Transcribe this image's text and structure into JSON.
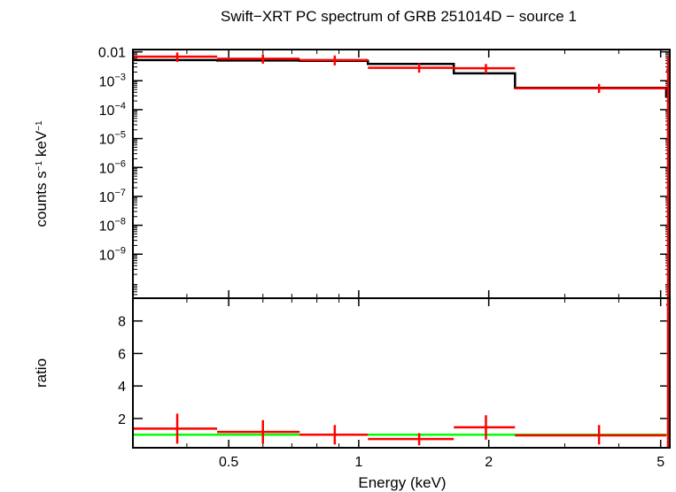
{
  "chart_data": {
    "type": "line",
    "title": "Swift−XRT PC spectrum of GRB 251014D − source 1",
    "xlabel": "Energy (keV)",
    "x_scale": "log",
    "xlim": [
      0.3,
      5.25
    ],
    "x_ticks": [
      {
        "value": 0.5,
        "label": "0.5"
      },
      {
        "value": 1,
        "label": "1"
      },
      {
        "value": 2,
        "label": "2"
      },
      {
        "value": 5,
        "label": "5"
      }
    ],
    "panels": [
      {
        "name": "spectrum",
        "ylabel": "counts s⁻¹ keV⁻¹",
        "y_scale": "log",
        "ylim": [
          3e-11,
          0.012
        ],
        "y_ticks": [
          {
            "value": 0.01,
            "label": "0.01"
          },
          {
            "value": 0.001,
            "label": "10⁻³"
          },
          {
            "value": 0.0001,
            "label": "10⁻⁴"
          },
          {
            "value": 1e-05,
            "label": "10⁻⁵"
          },
          {
            "value": 1e-06,
            "label": "10⁻⁶"
          },
          {
            "value": 1e-07,
            "label": "10⁻⁷"
          },
          {
            "value": 1e-08,
            "label": "10⁻⁸"
          },
          {
            "value": 1e-09,
            "label": "10⁻⁹"
          }
        ],
        "data": {
          "color": "#ff0000",
          "points": [
            {
              "x": 0.38,
              "xlo": 0.3,
              "xhi": 0.47,
              "y": 0.0068,
              "ylo": 0.0045,
              "yhi": 0.0095
            },
            {
              "x": 0.6,
              "xlo": 0.47,
              "xhi": 0.73,
              "y": 0.0058,
              "ylo": 0.0039,
              "yhi": 0.0082
            },
            {
              "x": 0.88,
              "xlo": 0.73,
              "xhi": 1.05,
              "y": 0.0052,
              "ylo": 0.0034,
              "yhi": 0.0075
            },
            {
              "x": 1.38,
              "xlo": 1.05,
              "xhi": 1.66,
              "y": 0.0028,
              "ylo": 0.0019,
              "yhi": 0.004
            },
            {
              "x": 1.97,
              "xlo": 1.66,
              "xhi": 2.3,
              "y": 0.0027,
              "ylo": 0.0018,
              "yhi": 0.0038
            },
            {
              "x": 3.6,
              "xlo": 2.3,
              "xhi": 5.15,
              "y": 0.00055,
              "ylo": 0.00038,
              "yhi": 0.00078
            },
            {
              "x": 5.2,
              "xlo": 5.15,
              "xhi": 5.25,
              "y": 0.0023,
              "ylo": 3e-11,
              "yhi": 0.0075
            }
          ]
        },
        "model": {
          "color": "#000000",
          "steps": [
            {
              "xlo": 0.3,
              "xhi": 0.47,
              "y": 0.0052
            },
            {
              "xlo": 0.47,
              "xhi": 0.73,
              "y": 0.005
            },
            {
              "xlo": 0.73,
              "xhi": 1.05,
              "y": 0.0049
            },
            {
              "xlo": 1.05,
              "xhi": 1.66,
              "y": 0.0038
            },
            {
              "xlo": 1.66,
              "xhi": 2.3,
              "y": 0.0018
            },
            {
              "xlo": 2.3,
              "xhi": 5.15,
              "y": 0.00057
            },
            {
              "xlo": 5.15,
              "xhi": 5.25,
              "y": 0.00028
            }
          ]
        }
      },
      {
        "name": "ratio",
        "ylabel": "ratio",
        "y_scale": "linear",
        "ylim": [
          0.2,
          9.4
        ],
        "y_ticks": [
          {
            "value": 2,
            "label": "2"
          },
          {
            "value": 4,
            "label": "4"
          },
          {
            "value": 6,
            "label": "6"
          },
          {
            "value": 8,
            "label": "8"
          }
        ],
        "reference_line": {
          "y": 1,
          "color": "#00ff00"
        },
        "data": {
          "color": "#ff0000",
          "points": [
            {
              "x": 0.38,
              "xlo": 0.3,
              "xhi": 0.47,
              "y": 1.38,
              "ylo": 0.45,
              "yhi": 2.3
            },
            {
              "x": 0.6,
              "xlo": 0.47,
              "xhi": 0.73,
              "y": 1.17,
              "ylo": 0.45,
              "yhi": 1.9
            },
            {
              "x": 0.88,
              "xlo": 0.73,
              "xhi": 1.05,
              "y": 1.0,
              "ylo": 0.4,
              "yhi": 1.6
            },
            {
              "x": 1.38,
              "xlo": 1.05,
              "xhi": 1.66,
              "y": 0.74,
              "ylo": 0.35,
              "yhi": 1.1
            },
            {
              "x": 1.97,
              "xlo": 1.66,
              "xhi": 2.3,
              "y": 1.46,
              "ylo": 0.7,
              "yhi": 2.2
            },
            {
              "x": 3.6,
              "xlo": 2.3,
              "xhi": 5.15,
              "y": 0.96,
              "ylo": 0.4,
              "yhi": 1.6
            },
            {
              "x": 5.2,
              "xlo": 5.15,
              "xhi": 5.25,
              "y": 9.0,
              "ylo": 0.2,
              "yhi": 9.4
            }
          ]
        }
      }
    ]
  }
}
